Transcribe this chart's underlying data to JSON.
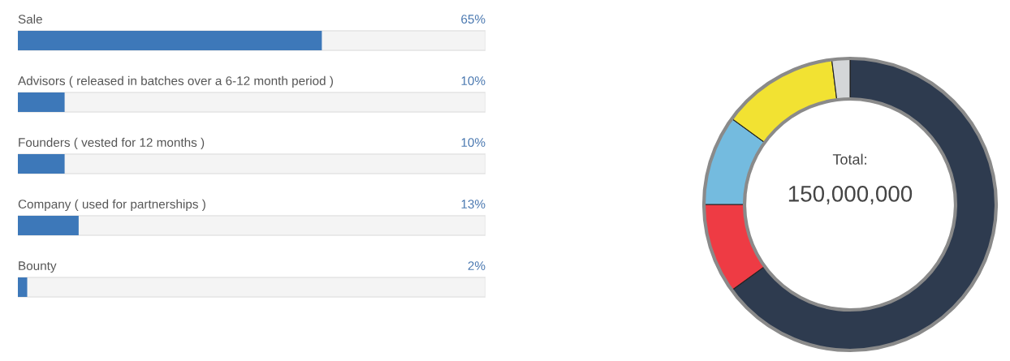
{
  "chart_data": [
    {
      "type": "bar",
      "orientation": "horizontal",
      "categories": [
        "Sale",
        "Advisors ( released in batches over a 6-12 month period )",
        "Founders ( vested for 12 months )",
        "Company ( used for partnerships )",
        "Bounty"
      ],
      "values": [
        65,
        10,
        10,
        13,
        2
      ],
      "value_labels": [
        "65%",
        "10%",
        "10%",
        "13%",
        "2%"
      ],
      "color": "#3d78b9",
      "xlim": [
        0,
        100
      ],
      "tick_labels": false
    },
    {
      "type": "donut",
      "categories": [
        null,
        null,
        null,
        null,
        null
      ],
      "values": [
        65,
        10,
        10,
        13,
        2
      ],
      "colors": [
        "#2e3b4f",
        "#ee3b44",
        "#74bbdf",
        "#f2e232",
        "#d4d6d8"
      ],
      "annotations": [
        "Total:",
        "150,000,000"
      ]
    }
  ]
}
